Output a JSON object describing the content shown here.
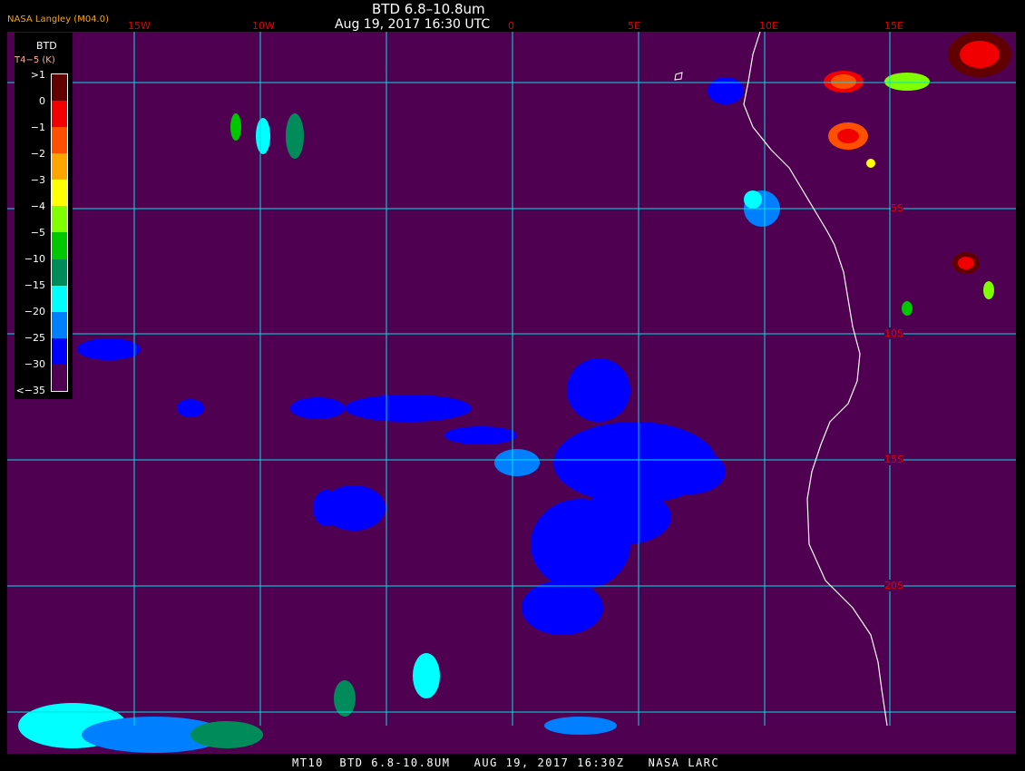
{
  "header": {
    "title": "BTD 6.8–10.8um",
    "datetime": "Aug 19, 2017 16:30 UTC",
    "credit": "NASA Langley (M04.0)"
  },
  "legend": {
    "title": "BTD",
    "unit": "T4−5 (K)",
    "labels": [
      ">1",
      "0",
      "−1",
      "−2",
      "−3",
      "−4",
      "−5",
      "−10",
      "−15",
      "−20",
      "−25",
      "−30",
      "<−35"
    ],
    "colors": [
      "#600000",
      "#f00000",
      "#ff5000",
      "#ffa500",
      "#ffff00",
      "#80ff00",
      "#00c800",
      "#008c5a",
      "#00ffff",
      "#0080ff",
      "#0000ff",
      "#500050"
    ]
  },
  "grid": {
    "lon_labels": [
      "15W",
      "10W",
      "0",
      "5E",
      "10E",
      "15E"
    ],
    "lat_labels": [
      "5S",
      "10S",
      "15S",
      "20S"
    ],
    "grid_color": "#00e0e0",
    "label_color": "#e00000",
    "background_color": "#500050",
    "coastline_color": "#ffffff"
  },
  "footer": {
    "caption": "MT10  BTD 6.8-10.8UM   AUG 19, 2017 16:30Z   NASA LARC"
  }
}
